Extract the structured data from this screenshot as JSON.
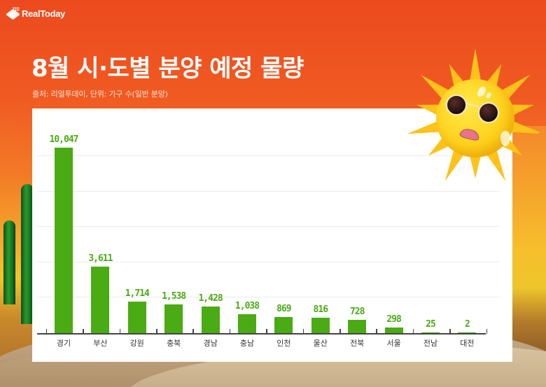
{
  "brand": {
    "logo_text": "RealToday"
  },
  "header": {
    "title": "8월 시·도별 분양 예정 물량",
    "subtitle": "출처: 리얼투데이, 단위: 가구 수(일반 분양)"
  },
  "colors": {
    "bar": "#4aab14",
    "value_label": "#4aab14",
    "background_top": "#ec4a1e",
    "panel": "#ffffff"
  },
  "chart_data": {
    "type": "bar",
    "title": "8월 시·도별 분양 예정 물량",
    "subtitle": "출처: 리얼투데이, 단위: 가구 수(일반 분양)",
    "xlabel": "",
    "ylabel": "가구 수",
    "categories": [
      "경기",
      "부산",
      "강원",
      "충북",
      "경남",
      "충남",
      "인천",
      "울산",
      "전북",
      "서울",
      "전남",
      "대전"
    ],
    "values": [
      10047,
      3611,
      1714,
      1538,
      1428,
      1038,
      869,
      816,
      728,
      298,
      25,
      2
    ],
    "value_labels": [
      "10,047",
      "3,611",
      "1,714",
      "1,538",
      "1,428",
      "1,038",
      "869",
      "816",
      "728",
      "298",
      "25",
      "2"
    ],
    "ylim": [
      0,
      12000
    ],
    "grid": true,
    "y_axis_visible": false,
    "legend": null
  }
}
